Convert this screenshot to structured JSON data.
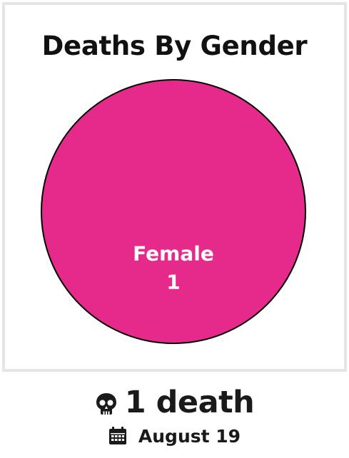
{
  "chart_data": {
    "type": "pie",
    "title": "Deaths By Gender",
    "slices": [
      {
        "label": "Female",
        "value": 1,
        "color": "#e52a8b"
      }
    ]
  },
  "summary": {
    "count_label": "1 death",
    "date_label": "August 19"
  },
  "icons": {
    "count": "skull-icon",
    "date": "calendar-icon"
  },
  "colors": {
    "border": "#e5e5e5",
    "slice_outline": "#000000",
    "slice_text": "#ffffff"
  }
}
